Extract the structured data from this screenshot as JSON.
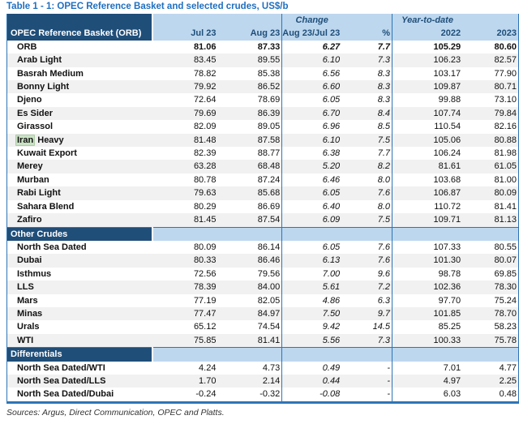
{
  "title": "Table 1 - 1: OPEC Reference Basket and selected crudes, US$/b",
  "footer": "Sources:  Argus, Direct Communication, OPEC and Platts.",
  "colors": {
    "title_blue": "#1F6FC0",
    "dark_navy": "#1F4E79",
    "light_blue": "#BDD7EE",
    "separator_blue": "#2E75B6",
    "row_alt_gray": "#F1F1F1",
    "search_highlight_green": "#C9E2C4"
  },
  "header": {
    "basket_label": "OPEC Reference Basket (ORB)",
    "group_change": "Change",
    "group_ytd": "Year-to-date",
    "columns": [
      "Jul 23",
      "Aug 23",
      "Aug 23/Jul 23",
      "%",
      "2022",
      "2023"
    ]
  },
  "sections": [
    {
      "name": null,
      "rows": [
        {
          "label": "ORB",
          "bold": true,
          "values": [
            "81.06",
            "87.33",
            "6.27",
            "7.7",
            "105.29",
            "80.60"
          ]
        },
        {
          "label": "Arab Light",
          "values": [
            "83.45",
            "89.55",
            "6.10",
            "7.3",
            "106.23",
            "82.57"
          ]
        },
        {
          "label": "Basrah Medium",
          "values": [
            "78.82",
            "85.38",
            "6.56",
            "8.3",
            "103.17",
            "77.90"
          ]
        },
        {
          "label": "Bonny Light",
          "values": [
            "79.92",
            "86.52",
            "6.60",
            "8.3",
            "109.87",
            "80.71"
          ]
        },
        {
          "label": "Djeno",
          "values": [
            "72.64",
            "78.69",
            "6.05",
            "8.3",
            "99.88",
            "73.10"
          ]
        },
        {
          "label": "Es Sider",
          "values": [
            "79.69",
            "86.39",
            "6.70",
            "8.4",
            "107.74",
            "79.84"
          ]
        },
        {
          "label": "Girassol",
          "values": [
            "82.09",
            "89.05",
            "6.96",
            "8.5",
            "110.54",
            "82.16"
          ]
        },
        {
          "label": "Iran Heavy",
          "highlight": "Iran",
          "values": [
            "81.48",
            "87.58",
            "6.10",
            "7.5",
            "105.06",
            "80.88"
          ]
        },
        {
          "label": "Kuwait Export",
          "values": [
            "82.39",
            "88.77",
            "6.38",
            "7.7",
            "106.24",
            "81.98"
          ]
        },
        {
          "label": "Merey",
          "values": [
            "63.28",
            "68.48",
            "5.20",
            "8.2",
            "81.61",
            "61.05"
          ]
        },
        {
          "label": "Murban",
          "values": [
            "80.78",
            "87.24",
            "6.46",
            "8.0",
            "103.68",
            "81.00"
          ]
        },
        {
          "label": "Rabi Light",
          "values": [
            "79.63",
            "85.68",
            "6.05",
            "7.6",
            "106.87",
            "80.09"
          ]
        },
        {
          "label": "Sahara Blend",
          "values": [
            "80.29",
            "86.69",
            "6.40",
            "8.0",
            "110.72",
            "81.41"
          ]
        },
        {
          "label": "Zafiro",
          "values": [
            "81.45",
            "87.54",
            "6.09",
            "7.5",
            "109.71",
            "81.13"
          ]
        }
      ]
    },
    {
      "name": "Other Crudes",
      "rows": [
        {
          "label": "North Sea Dated",
          "values": [
            "80.09",
            "86.14",
            "6.05",
            "7.6",
            "107.33",
            "80.55"
          ]
        },
        {
          "label": "Dubai",
          "values": [
            "80.33",
            "86.46",
            "6.13",
            "7.6",
            "101.30",
            "80.07"
          ]
        },
        {
          "label": "Isthmus",
          "values": [
            "72.56",
            "79.56",
            "7.00",
            "9.6",
            "98.78",
            "69.85"
          ]
        },
        {
          "label": "LLS",
          "values": [
            "78.39",
            "84.00",
            "5.61",
            "7.2",
            "102.36",
            "78.30"
          ]
        },
        {
          "label": "Mars",
          "values": [
            "77.19",
            "82.05",
            "4.86",
            "6.3",
            "97.70",
            "75.24"
          ]
        },
        {
          "label": "Minas",
          "values": [
            "77.47",
            "84.97",
            "7.50",
            "9.7",
            "101.85",
            "78.70"
          ]
        },
        {
          "label": "Urals",
          "values": [
            "65.12",
            "74.54",
            "9.42",
            "14.5",
            "85.25",
            "58.23"
          ]
        },
        {
          "label": "WTI",
          "values": [
            "75.85",
            "81.41",
            "5.56",
            "7.3",
            "100.33",
            "75.78"
          ]
        }
      ]
    },
    {
      "name": "Differentials",
      "rows": [
        {
          "label": "North Sea Dated/WTI",
          "values": [
            "4.24",
            "4.73",
            "0.49",
            "-",
            "7.01",
            "4.77"
          ]
        },
        {
          "label": "North Sea Dated/LLS",
          "values": [
            "1.70",
            "2.14",
            "0.44",
            "-",
            "4.97",
            "2.25"
          ]
        },
        {
          "label": "North Sea Dated/Dubai",
          "values": [
            "-0.24",
            "-0.32",
            "-0.08",
            "-",
            "6.03",
            "0.48"
          ]
        }
      ]
    }
  ]
}
